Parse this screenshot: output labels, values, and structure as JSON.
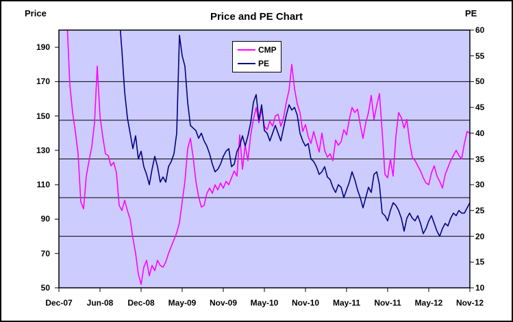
{
  "chart_data": {
    "type": "line",
    "title": "Price and PE Chart",
    "left_axis": {
      "label": "Price",
      "min": 50,
      "max": 200,
      "ticks": [
        50,
        70,
        90,
        110,
        130,
        150,
        170,
        190
      ]
    },
    "right_axis": {
      "label": "PE",
      "min": 10,
      "max": 60,
      "ticks": [
        10,
        15,
        20,
        25,
        30,
        35,
        40,
        45,
        50,
        55,
        60
      ]
    },
    "x_axis": {
      "tick_labels": [
        "Dec-07",
        "Jun-08",
        "Dec-08",
        "May-09",
        "Nov-09",
        "May-10",
        "Nov-10",
        "May-11",
        "Nov-11",
        "May-12",
        "Nov-12"
      ]
    },
    "gridlines_pe": [
      50,
      42.5,
      35,
      27.5,
      20
    ],
    "grid": true,
    "legend": {
      "position": "top-center",
      "entries": [
        {
          "label": "CMP",
          "color": "#FF00FF"
        },
        {
          "label": "PE",
          "color": "#000080"
        }
      ]
    },
    "colors": {
      "plot_bg": "#CCCCFF",
      "grid": "#000000",
      "axis": "#000000"
    },
    "series": [
      {
        "name": "CMP",
        "axis": "left",
        "color": "#FF00FF",
        "values": [
          208,
          207,
          206,
          204,
          168,
          152,
          141,
          128,
          100,
          96,
          115,
          124,
          132,
          146,
          179,
          150,
          138,
          128,
          127,
          121,
          123,
          117,
          98,
          95,
          101,
          95,
          90,
          79,
          70,
          58,
          52,
          62,
          66,
          57,
          63,
          60,
          66,
          63,
          62,
          65,
          70,
          74,
          78,
          82,
          88,
          100,
          112,
          131,
          137,
          126,
          112,
          103,
          97,
          98,
          105,
          108,
          105,
          110,
          107,
          111,
          108,
          112,
          110,
          114,
          118,
          115,
          139,
          119,
          133,
          124,
          139,
          148,
          155,
          146,
          154,
          144,
          142,
          147,
          144,
          150,
          151,
          144,
          149,
          158,
          165,
          180,
          166,
          157,
          152,
          141,
          145,
          138,
          134,
          141,
          135,
          129,
          140,
          130,
          126,
          128,
          124,
          136,
          133,
          135,
          142,
          139,
          148,
          155,
          152,
          154,
          145,
          137,
          146,
          152,
          162,
          148,
          156,
          163,
          141,
          116,
          114,
          125,
          115,
          138,
          152,
          149,
          143,
          148,
          135,
          126,
          124,
          121,
          118,
          114,
          111,
          110,
          117,
          121,
          115,
          112,
          108,
          116,
          120,
          124,
          127,
          130,
          127,
          125,
          134,
          141,
          140
        ]
      },
      {
        "name": "PE",
        "axis": "right",
        "color": "#000080",
        "values": [
          62,
          62,
          62,
          62,
          62,
          62,
          62,
          62,
          62,
          62,
          62,
          62,
          62,
          62,
          62,
          62,
          62,
          62,
          62,
          62,
          62,
          62,
          63,
          56,
          48,
          43,
          40,
          37,
          39.5,
          35,
          36.5,
          33.5,
          32,
          30,
          33,
          35.5,
          33.5,
          30.5,
          31.5,
          30.5,
          33.5,
          34.5,
          36,
          40,
          59,
          55,
          53,
          46,
          41.5,
          41,
          40.5,
          39,
          40,
          38.5,
          37.5,
          36,
          34,
          32.5,
          33,
          34,
          35.5,
          36.5,
          37,
          33.5,
          34,
          36.5,
          37.5,
          39.5,
          37.5,
          39.5,
          42,
          46,
          47.5,
          42.5,
          45.5,
          40.5,
          40,
          38.5,
          40,
          41.5,
          40,
          38.5,
          41,
          43.5,
          45.5,
          44.5,
          45,
          43.5,
          40,
          38.5,
          37.5,
          38,
          35,
          34.5,
          33.5,
          32,
          32.5,
          33.5,
          31.5,
          31,
          29.5,
          28.5,
          30,
          29.5,
          27.5,
          29,
          30.5,
          32.5,
          31,
          29,
          27.5,
          25.5,
          27.5,
          29.5,
          28.5,
          32,
          32.5,
          30,
          24.5,
          24,
          23,
          25,
          26.5,
          26,
          25,
          23.5,
          21,
          23.5,
          24.5,
          23.5,
          23,
          24,
          22.5,
          20.5,
          21.5,
          23,
          24,
          22.5,
          21,
          20,
          21.5,
          22.5,
          22,
          23.5,
          24.5,
          24,
          25,
          24.5,
          24.5,
          25.5,
          26.5
        ]
      }
    ]
  }
}
